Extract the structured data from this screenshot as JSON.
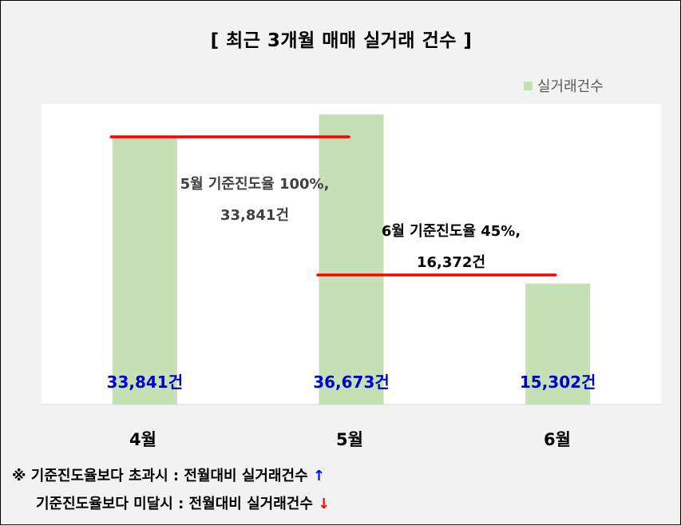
{
  "chart_data": {
    "type": "bar",
    "title": "[ 최근 3개월  매매 실거래 건수 ]",
    "categories": [
      "4월",
      "5월",
      "6월"
    ],
    "series": [
      {
        "name": "실거래건수",
        "values": [
          33841,
          36673,
          15302
        ],
        "color": "#c5e0b4"
      }
    ],
    "data_labels": [
      "33,841건",
      "36,673건",
      "15,302건"
    ],
    "data_label_color": "#0000cc",
    "ylim": [
      0,
      38000
    ],
    "legend": "top-right",
    "grid": false,
    "reference_lines": [
      {
        "value": 33841,
        "from": "4월",
        "to": "5월",
        "color": "#ff0000",
        "label_lines": [
          "5월 기준진도율 100%,",
          "33,841건"
        ]
      },
      {
        "value": 16372,
        "from": "5월",
        "to": "6월",
        "color": "#ff0000",
        "label_lines": [
          "6월 기준진도율 45%,",
          "16,372건"
        ]
      }
    ]
  },
  "notes": [
    {
      "prefix": "※ ",
      "text": "기준진도율보다 초과시 : 전월대비 실거래건수 ",
      "arrow": "↑",
      "arrow_color": "#0000ff"
    },
    {
      "prefix": "",
      "text": "기준진도율보다 미달시 : 전월대비 실거래건수 ",
      "arrow": "↓",
      "arrow_color": "#ff0000"
    }
  ]
}
